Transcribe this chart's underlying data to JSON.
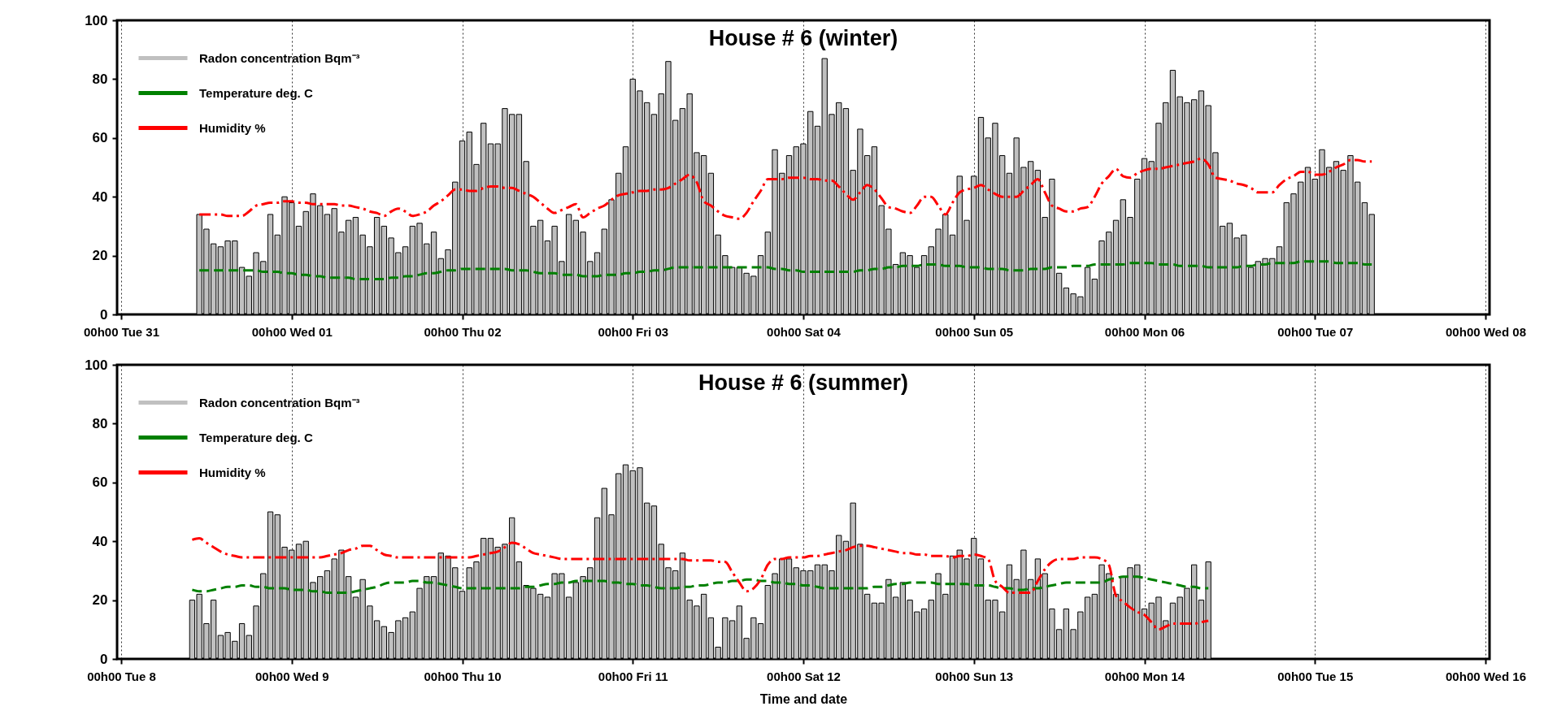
{
  "chart_data": [
    {
      "type": "bar",
      "title": "House # 6 (winter)",
      "categories": [
        "00h00 Tue 31",
        null,
        null,
        null,
        null,
        null,
        null,
        null,
        null,
        null,
        null,
        null,
        null,
        null,
        null,
        null,
        null,
        null,
        null,
        null,
        null,
        null,
        null,
        null,
        "00h00 Wed 01",
        null,
        null,
        null,
        null,
        null,
        null,
        null,
        null,
        null,
        null,
        null,
        null,
        null,
        null,
        null,
        null,
        null,
        null,
        null,
        null,
        null,
        null,
        null,
        "00h00 Thu 02",
        null,
        null,
        null,
        null,
        null,
        null,
        null,
        null,
        null,
        null,
        null,
        null,
        null,
        null,
        null,
        null,
        null,
        null,
        null,
        null,
        null,
        null,
        null,
        "00h00 Fri 03",
        null,
        null,
        null,
        null,
        null,
        null,
        null,
        null,
        null,
        null,
        null,
        null,
        null,
        null,
        null,
        null,
        null,
        null,
        null,
        null,
        null,
        null,
        null,
        "00h00 Sat 04",
        null,
        null,
        null,
        null,
        null,
        null,
        null,
        null,
        null,
        null,
        null,
        null,
        null,
        null,
        null,
        null,
        null,
        null,
        null,
        null,
        null,
        null,
        null,
        "00h00 Sun 05",
        null,
        null,
        null,
        null,
        null,
        null,
        null,
        null,
        null,
        null,
        null,
        null,
        null,
        null,
        null,
        null,
        null,
        null,
        null,
        null,
        null,
        null,
        null,
        "00h00 Mon 06",
        null,
        null,
        null,
        null,
        null,
        null,
        null,
        null,
        null,
        null,
        null,
        null,
        null,
        null,
        null,
        null,
        null,
        null,
        null,
        null,
        null,
        null,
        null,
        "00h00 Tue 07",
        null,
        null,
        null,
        null,
        null,
        null,
        null,
        null,
        null,
        null,
        null,
        null,
        null,
        null,
        null,
        null,
        null,
        null,
        null,
        null,
        null,
        null,
        null,
        "00h00 Wed 08"
      ],
      "ylim": [
        0,
        100
      ],
      "yticks": [
        0,
        20,
        40,
        60,
        80,
        100
      ],
      "grid": "x",
      "legend": "top left",
      "series": [
        {
          "name": "Radon concentration Bqm⁻³",
          "color": "#c0c0c0",
          "values": [
            null,
            null,
            null,
            null,
            null,
            null,
            null,
            null,
            null,
            null,
            null,
            34,
            29,
            24,
            23,
            25,
            25,
            16,
            13,
            21,
            18,
            34,
            27,
            40,
            38,
            30,
            35,
            41,
            37,
            34,
            36,
            28,
            32,
            33,
            27,
            23,
            33,
            30,
            26,
            21,
            23,
            30,
            31,
            24,
            28,
            19,
            22,
            45,
            59,
            62,
            51,
            65,
            58,
            58,
            70,
            68,
            68,
            52,
            30,
            32,
            25,
            30,
            18,
            34,
            32,
            28,
            18,
            21,
            29,
            39,
            48,
            57,
            80,
            76,
            72,
            68,
            75,
            86,
            66,
            70,
            75,
            55,
            54,
            48,
            27,
            20,
            16,
            16,
            14,
            13,
            20,
            28,
            56,
            48,
            54,
            57,
            58,
            69,
            64,
            87,
            68,
            72,
            70,
            49,
            63,
            54,
            57,
            37,
            29,
            17,
            21,
            20,
            16,
            20,
            23,
            29,
            34,
            27,
            47,
            32,
            47,
            67,
            60,
            65,
            54,
            48,
            60,
            50,
            52,
            49,
            33,
            46,
            14,
            9,
            7,
            6,
            16,
            12,
            25,
            28,
            32,
            39,
            33,
            46,
            53,
            52,
            65,
            72,
            83,
            74,
            72,
            73,
            76,
            71,
            55,
            30,
            31,
            26,
            27,
            16,
            18,
            19,
            19,
            23,
            38,
            41,
            45,
            50,
            46,
            56,
            50,
            52,
            49,
            54,
            45,
            38,
            34,
            null,
            null,
            null,
            null,
            null,
            null,
            null,
            null,
            null,
            null,
            null,
            null,
            null,
            null,
            null,
            null
          ]
        },
        {
          "name": "Temperature deg. C",
          "type": "line",
          "color": "#008000",
          "line_style": "dashed",
          "values": [
            null,
            null,
            null,
            null,
            null,
            null,
            null,
            null,
            null,
            null,
            null,
            15,
            15,
            15,
            15,
            15,
            15,
            15,
            15,
            15,
            14.5,
            14.5,
            14.5,
            14,
            14,
            13.5,
            13.5,
            13,
            13,
            12.5,
            12.5,
            12.5,
            12.5,
            12,
            12,
            12,
            12,
            12,
            12.5,
            12.5,
            13,
            13,
            13.5,
            14,
            14,
            14.5,
            15,
            15,
            15.5,
            15.5,
            15.5,
            15.5,
            15.5,
            15.5,
            15.5,
            15,
            15,
            15,
            14.5,
            14,
            14,
            14,
            13.5,
            13.5,
            13.5,
            13,
            13,
            13,
            13.5,
            13.5,
            13.5,
            14,
            14,
            14.5,
            14.5,
            15,
            15,
            15.5,
            16,
            16,
            16,
            16,
            16,
            16,
            16,
            16,
            16,
            16,
            16,
            16,
            16,
            16,
            15.5,
            15.5,
            15,
            15,
            14.5,
            14.5,
            14.5,
            14.5,
            14.5,
            14.5,
            14.5,
            14.5,
            15,
            15,
            15.5,
            15.5,
            16,
            16,
            16.5,
            16.5,
            16.5,
            17,
            17,
            17,
            16.5,
            16.5,
            16.5,
            16,
            16,
            16,
            15.5,
            15.5,
            15.5,
            15,
            15,
            15,
            15.5,
            15.5,
            15.5,
            16,
            16,
            16,
            16.5,
            16.5,
            16.5,
            17,
            17,
            17,
            17,
            17,
            17.5,
            17.5,
            17.5,
            17.5,
            17,
            17,
            17,
            16.5,
            16.5,
            16.5,
            16.5,
            16,
            16,
            16,
            16,
            16,
            16.5,
            16.5,
            17,
            17,
            17.5,
            17.5,
            17.5,
            17.5,
            18,
            18,
            18,
            18,
            18,
            17.5,
            17.5,
            17.5,
            17.5,
            17,
            17,
            null,
            null,
            null,
            null,
            null,
            null,
            null,
            null,
            null,
            null,
            null,
            null,
            null,
            null,
            null,
            null
          ]
        },
        {
          "name": "Humidity %",
          "type": "line",
          "color": "#ff0000",
          "line_style": "dashdot",
          "values": [
            null,
            null,
            null,
            null,
            null,
            null,
            null,
            null,
            null,
            null,
            null,
            34,
            34,
            34,
            34,
            33.5,
            33.5,
            33.5,
            35,
            37,
            37.5,
            38,
            38,
            38.5,
            38.5,
            38,
            38,
            37.5,
            37.5,
            37.5,
            37.5,
            37,
            37,
            36.5,
            36,
            35,
            34.5,
            33.5,
            35,
            36,
            35,
            33.5,
            34,
            35,
            37,
            38.5,
            40.5,
            42.5,
            42.5,
            42,
            42,
            43,
            43.5,
            43.5,
            43,
            43,
            42,
            41,
            40,
            38,
            36,
            34.5,
            35.5,
            36.5,
            37.5,
            33,
            34.5,
            36,
            37,
            39,
            40.5,
            41,
            41.5,
            42,
            42,
            42.5,
            42.5,
            43,
            44.5,
            46,
            47.5,
            45,
            38.5,
            37,
            35,
            33.5,
            33,
            32.5,
            34.5,
            38.5,
            42,
            46,
            46,
            46,
            46.5,
            46.5,
            46.5,
            46,
            46,
            45.5,
            45.5,
            43.5,
            41,
            39,
            41.5,
            44,
            42.5,
            39.5,
            36.5,
            36,
            35,
            34.5,
            37,
            40,
            40,
            37,
            34,
            38,
            41.5,
            42.5,
            43,
            44,
            42.5,
            41,
            40,
            40,
            40,
            42,
            44,
            46,
            41.5,
            37,
            36,
            35,
            35,
            36,
            36.5,
            40,
            44.5,
            47,
            49.5,
            47,
            46.5,
            48,
            49,
            49.5,
            49.5,
            50,
            50.5,
            51,
            51.5,
            52,
            53,
            51,
            46.5,
            46,
            45.5,
            44.5,
            44,
            43,
            41.5,
            41.5,
            41.5,
            44,
            46,
            47,
            48.5,
            48.5,
            47.5,
            47.5,
            48.5,
            50,
            51,
            52.5,
            52.5,
            52,
            52,
            null,
            null,
            null,
            null,
            null,
            null,
            null,
            null,
            null,
            null,
            null,
            null,
            null,
            null,
            null,
            null
          ]
        }
      ]
    },
    {
      "type": "bar",
      "title": "House # 6 (summer)",
      "xlabel": "Time and date",
      "categories": [
        "00h00 Tue 8",
        null,
        null,
        null,
        null,
        null,
        null,
        null,
        null,
        null,
        null,
        null,
        null,
        null,
        null,
        null,
        null,
        null,
        null,
        null,
        null,
        null,
        null,
        null,
        "00h00 Wed 9",
        null,
        null,
        null,
        null,
        null,
        null,
        null,
        null,
        null,
        null,
        null,
        null,
        null,
        null,
        null,
        null,
        null,
        null,
        null,
        null,
        null,
        null,
        null,
        "00h00 Thu 10",
        null,
        null,
        null,
        null,
        null,
        null,
        null,
        null,
        null,
        null,
        null,
        null,
        null,
        null,
        null,
        null,
        null,
        null,
        null,
        null,
        null,
        null,
        null,
        "00h00 Fri 11",
        null,
        null,
        null,
        null,
        null,
        null,
        null,
        null,
        null,
        null,
        null,
        null,
        null,
        null,
        null,
        null,
        null,
        null,
        null,
        null,
        null,
        null,
        null,
        "00h00 Sat 12",
        null,
        null,
        null,
        null,
        null,
        null,
        null,
        null,
        null,
        null,
        null,
        null,
        null,
        null,
        null,
        null,
        null,
        null,
        null,
        null,
        null,
        null,
        null,
        "00h00 Sun 13",
        null,
        null,
        null,
        null,
        null,
        null,
        null,
        null,
        null,
        null,
        null,
        null,
        null,
        null,
        null,
        null,
        null,
        null,
        null,
        null,
        null,
        null,
        null,
        "00h00 Mon 14",
        null,
        null,
        null,
        null,
        null,
        null,
        null,
        null,
        null,
        null,
        null,
        null,
        null,
        null,
        null,
        null,
        null,
        null,
        null,
        null,
        null,
        null,
        null,
        "00h00 Tue 15",
        null,
        null,
        null,
        null,
        null,
        null,
        null,
        null,
        null,
        null,
        null,
        null,
        null,
        null,
        null,
        null,
        null,
        null,
        null,
        null,
        null,
        null,
        null,
        "00h00 Wed 16"
      ],
      "ylim": [
        0,
        100
      ],
      "yticks": [
        0,
        20,
        40,
        60,
        80,
        100
      ],
      "grid": "x",
      "legend": "top left",
      "series": [
        {
          "name": "Radon concentration Bqm⁻³",
          "color": "#c0c0c0",
          "values": [
            null,
            null,
            null,
            null,
            null,
            null,
            null,
            null,
            null,
            null,
            20,
            22,
            12,
            20,
            8,
            9,
            6,
            12,
            8,
            18,
            29,
            50,
            49,
            38,
            37,
            39,
            40,
            26,
            28,
            30,
            34,
            37,
            28,
            21,
            27,
            18,
            13,
            11,
            9,
            13,
            14,
            16,
            24,
            28,
            28,
            36,
            35,
            31,
            23,
            31,
            33,
            41,
            41,
            38,
            39,
            48,
            33,
            25,
            24,
            22,
            21,
            29,
            29,
            21,
            26,
            28,
            31,
            48,
            58,
            49,
            63,
            66,
            64,
            65,
            53,
            52,
            39,
            31,
            30,
            36,
            20,
            18,
            22,
            14,
            4,
            14,
            13,
            18,
            7,
            14,
            12,
            25,
            29,
            34,
            34,
            31,
            30,
            30,
            32,
            32,
            30,
            42,
            40,
            53,
            39,
            22,
            19,
            19,
            27,
            21,
            26,
            20,
            16,
            17,
            20,
            29,
            22,
            35,
            37,
            34,
            41,
            34,
            20,
            20,
            16,
            32,
            27,
            37,
            27,
            34,
            29,
            17,
            10,
            17,
            10,
            16,
            21,
            22,
            32,
            29,
            22,
            28,
            31,
            32,
            17,
            19,
            21,
            13,
            19,
            21,
            24,
            32,
            20,
            33,
            null,
            null,
            null,
            null,
            null,
            null,
            null,
            null,
            null,
            null,
            null,
            null,
            null,
            null,
            null,
            null,
            null,
            null,
            null,
            null,
            null,
            null,
            null,
            null,
            null,
            null,
            null,
            null,
            null,
            null,
            null,
            null,
            null,
            null,
            null,
            null,
            null,
            null,
            null
          ]
        },
        {
          "name": "Temperature deg. C",
          "type": "line",
          "color": "#008000",
          "line_style": "dashed",
          "values": [
            null,
            null,
            null,
            null,
            null,
            null,
            null,
            null,
            null,
            null,
            23.5,
            23,
            23,
            23.5,
            24,
            24.5,
            24.5,
            25,
            25,
            24.5,
            24.5,
            24,
            24,
            24,
            23.5,
            23.5,
            23.5,
            23,
            23,
            22.5,
            22.5,
            22.5,
            22.5,
            23,
            23.5,
            24,
            24.5,
            25.5,
            26,
            26,
            26,
            26.5,
            26.5,
            26,
            26,
            25.5,
            25,
            24.5,
            24,
            24,
            24,
            24,
            24,
            24,
            24,
            24,
            24,
            24.5,
            24.5,
            25,
            25.5,
            25.5,
            26,
            26,
            26.5,
            26.5,
            26.5,
            26.5,
            26.5,
            26,
            26,
            25.5,
            25.5,
            25,
            25,
            24.5,
            24,
            24,
            24,
            24.5,
            24.5,
            25,
            25,
            25.5,
            26,
            26,
            26.5,
            26.5,
            27,
            27,
            26.5,
            26.5,
            26,
            26,
            25.5,
            25.5,
            25,
            25,
            24.5,
            24,
            24,
            24,
            24,
            24,
            24,
            24,
            24.5,
            24.5,
            25,
            25.5,
            25.5,
            26,
            26,
            26,
            26,
            25.5,
            25.5,
            25.5,
            25.5,
            25.5,
            25,
            25,
            25,
            24.5,
            24,
            24,
            23.5,
            23.5,
            24,
            24,
            24.5,
            25,
            25.5,
            26,
            26,
            26,
            26,
            26,
            26,
            27,
            27.5,
            28,
            28,
            28,
            27.5,
            27,
            26.5,
            26,
            25.5,
            25,
            24.5,
            24.5,
            24,
            24,
            null,
            null,
            null,
            null,
            null,
            null,
            null,
            null,
            null,
            null,
            null,
            null,
            null,
            null,
            null,
            null,
            null,
            null,
            null,
            null,
            null,
            null,
            null,
            null,
            null,
            null,
            null,
            null,
            null,
            null,
            null,
            null,
            null,
            null,
            null,
            null,
            null,
            null,
            null
          ]
        },
        {
          "name": "Humidity %",
          "type": "line",
          "color": "#ff0000",
          "line_style": "dashdot",
          "values": [
            null,
            null,
            null,
            null,
            null,
            null,
            null,
            null,
            null,
            null,
            40.5,
            41,
            39.5,
            38,
            36.5,
            35.5,
            35,
            34.5,
            34.5,
            34.5,
            34.5,
            34.5,
            34.5,
            34.5,
            34.5,
            34.5,
            34.5,
            34.5,
            34.5,
            35,
            35.5,
            36,
            37,
            37.5,
            38.5,
            38.5,
            37,
            35.5,
            35,
            34.5,
            34.5,
            34.5,
            34.5,
            34.5,
            34.5,
            34.5,
            34.5,
            34.5,
            34.5,
            34.5,
            35,
            35.5,
            36,
            36.5,
            38,
            39.5,
            39,
            37.5,
            36,
            35.5,
            35,
            34.5,
            34,
            34,
            34,
            34,
            34,
            34,
            34,
            34,
            34,
            34,
            34,
            34,
            34,
            34,
            34,
            34,
            34,
            34,
            33.5,
            33.5,
            33.5,
            33.5,
            33,
            33,
            29.5,
            26,
            23,
            24,
            27,
            32,
            34,
            34,
            34.5,
            34.5,
            34.5,
            35,
            35,
            35.5,
            36,
            36.5,
            37,
            38,
            38.5,
            38.5,
            38,
            37.5,
            37,
            36.5,
            36,
            36,
            35.5,
            35.5,
            35,
            35,
            35,
            34.5,
            35,
            35,
            35.5,
            35,
            34,
            26.5,
            24.5,
            22.5,
            22.5,
            22.5,
            22.5,
            26.5,
            30.5,
            33,
            34,
            34,
            34,
            34.5,
            34.5,
            34.5,
            34,
            32,
            21.5,
            19.5,
            17.5,
            16,
            15,
            12.5,
            10,
            11,
            12,
            12,
            12,
            12,
            12.5,
            13,
            null,
            null,
            null,
            null,
            null,
            null,
            null,
            null,
            null,
            null,
            null,
            null,
            null,
            null,
            null,
            null,
            null,
            null,
            null,
            null,
            null,
            null,
            null,
            null,
            null,
            null,
            null,
            null,
            null,
            null,
            null,
            null,
            null,
            null,
            null,
            null,
            null,
            null,
            null
          ]
        }
      ]
    }
  ]
}
